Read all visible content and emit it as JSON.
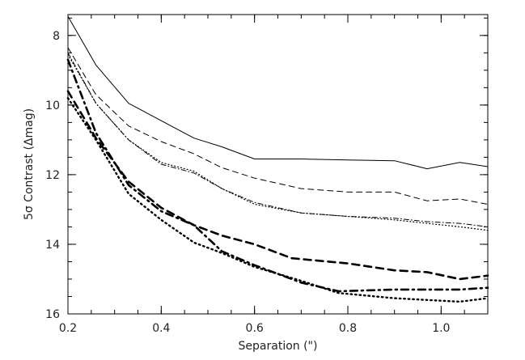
{
  "chart_data": {
    "type": "line",
    "xlabel": "Separation (\")",
    "ylabel": "5σ Contrast (Δmag)",
    "xlim": [
      0.2,
      1.1
    ],
    "ylim": [
      16,
      7.4
    ],
    "y_inverted": true,
    "xticks": [
      0.2,
      0.4,
      0.6,
      0.8,
      1.0
    ],
    "xtick_labels": [
      "0.2",
      "0.4",
      "0.6",
      "0.8",
      "1.0"
    ],
    "yticks": [
      8,
      10,
      12,
      14,
      16
    ],
    "ytick_labels": [
      "8",
      "10",
      "12",
      "14",
      "16"
    ],
    "grid": false,
    "series": [
      {
        "style": "thin-solid",
        "x": [
          0.2,
          0.26,
          0.33,
          0.4,
          0.47,
          0.53,
          0.6,
          0.7,
          0.8,
          0.9,
          0.97,
          1.04,
          1.1
        ],
        "y": [
          7.45,
          8.85,
          9.95,
          10.45,
          10.95,
          11.2,
          11.55,
          11.55,
          11.58,
          11.6,
          11.83,
          11.65,
          11.77
        ]
      },
      {
        "style": "thin-dashed",
        "x": [
          0.2,
          0.26,
          0.33,
          0.4,
          0.47,
          0.53,
          0.6,
          0.7,
          0.8,
          0.9,
          0.97,
          1.04,
          1.1
        ],
        "y": [
          8.35,
          9.7,
          10.6,
          11.05,
          11.4,
          11.8,
          12.1,
          12.4,
          12.5,
          12.5,
          12.75,
          12.7,
          12.85
        ]
      },
      {
        "style": "thin-dash-dot",
        "x": [
          0.2,
          0.26,
          0.33,
          0.4,
          0.47,
          0.53,
          0.6,
          0.7,
          0.8,
          0.9,
          0.97,
          1.04,
          1.1
        ],
        "y": [
          8.5,
          9.95,
          11.0,
          11.7,
          11.95,
          12.4,
          12.8,
          13.1,
          13.2,
          13.25,
          13.35,
          13.4,
          13.5
        ]
      },
      {
        "style": "thin-dotted",
        "x": [
          0.2,
          0.26,
          0.33,
          0.4,
          0.47,
          0.53,
          0.6,
          0.7,
          0.8,
          0.9,
          0.97,
          1.04,
          1.1
        ],
        "y": [
          8.55,
          9.95,
          11.0,
          11.65,
          11.9,
          12.4,
          12.85,
          13.1,
          13.2,
          13.3,
          13.4,
          13.5,
          13.6
        ]
      },
      {
        "style": "thick-dashed",
        "x": [
          0.2,
          0.26,
          0.33,
          0.4,
          0.47,
          0.53,
          0.6,
          0.68,
          0.8,
          0.9,
          0.97,
          1.04,
          1.1
        ],
        "y": [
          9.6,
          10.95,
          12.2,
          12.95,
          13.45,
          13.75,
          14.0,
          14.4,
          14.55,
          14.75,
          14.8,
          15.0,
          14.9
        ]
      },
      {
        "style": "thick-dash-dot",
        "x": [
          0.2,
          0.26,
          0.33,
          0.4,
          0.47,
          0.53,
          0.6,
          0.7,
          0.78,
          0.9,
          0.97,
          1.04,
          1.1
        ],
        "y": [
          8.7,
          10.8,
          12.3,
          13.05,
          13.45,
          14.2,
          14.6,
          15.1,
          15.35,
          15.3,
          15.3,
          15.3,
          15.25
        ]
      },
      {
        "style": "thick-dotted",
        "x": [
          0.2,
          0.26,
          0.33,
          0.4,
          0.47,
          0.53,
          0.6,
          0.7,
          0.78,
          0.9,
          0.97,
          1.04,
          1.1
        ],
        "y": [
          9.8,
          11.0,
          12.55,
          13.3,
          13.95,
          14.25,
          14.65,
          15.05,
          15.4,
          15.55,
          15.6,
          15.65,
          15.55
        ]
      }
    ]
  }
}
